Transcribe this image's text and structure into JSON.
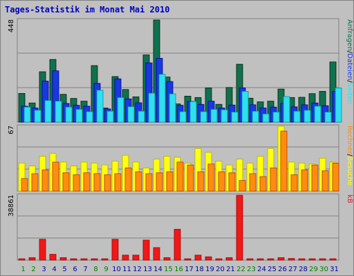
{
  "title": "Tages-Statistik im Monat Mai 2010",
  "colors": {
    "anfragen": "#107050",
    "dateien": "#1838e0",
    "seiten": "#30e0f0",
    "besuche": "#ffff10",
    "rechner": "#ff8c10",
    "kb": "#f01818",
    "weekend_label": "#008000",
    "weekday_label": "#0000a0"
  },
  "chart_data": [
    {
      "type": "bar",
      "panel": "top",
      "ymax_label": "448",
      "ymax": 448,
      "right_labels": [
        "Anfragen",
        "/",
        "Dateien",
        "/",
        "Seiten"
      ],
      "categories": [
        "1",
        "2",
        "3",
        "4",
        "5",
        "6",
        "7",
        "8",
        "9",
        "10",
        "11",
        "12",
        "13",
        "14",
        "15",
        "16",
        "17",
        "18",
        "19",
        "20",
        "21",
        "22",
        "23",
        "24",
        "25",
        "26",
        "27",
        "28",
        "29",
        "30",
        "31"
      ],
      "series": [
        {
          "name": "Anfragen",
          "values": [
            126,
            84,
            221,
            275,
            122,
            104,
            92,
            248,
            62,
            200,
            143,
            111,
            295,
            448,
            198,
            80,
            114,
            108,
            150,
            78,
            152,
            254,
            105,
            89,
            92,
            145,
            108,
            109,
            125,
            135,
            264
          ]
        },
        {
          "name": "Dateien",
          "values": [
            70,
            62,
            180,
            225,
            82,
            74,
            70,
            170,
            58,
            190,
            102,
            85,
            260,
            280,
            178,
            74,
            91,
            78,
            92,
            62,
            75,
            150,
            76,
            62,
            66,
            82,
            67,
            76,
            84,
            72,
            135
          ]
        },
        {
          "name": "Seiten",
          "values": [
            66,
            52,
            95,
            92,
            66,
            56,
            46,
            140,
            48,
            108,
            68,
            48,
            127,
            210,
            124,
            46,
            90,
            46,
            56,
            54,
            44,
            135,
            48,
            36,
            44,
            112,
            48,
            52,
            70,
            44,
            150
          ]
        }
      ]
    },
    {
      "type": "bar",
      "panel": "middle",
      "ymax_label": "67",
      "ymax": 67,
      "right_labels": [
        "Rechner",
        "/",
        "Besuche"
      ],
      "categories": [
        "1",
        "2",
        "3",
        "4",
        "5",
        "6",
        "7",
        "8",
        "9",
        "10",
        "11",
        "12",
        "13",
        "14",
        "15",
        "16",
        "17",
        "18",
        "19",
        "20",
        "21",
        "22",
        "23",
        "24",
        "25",
        "26",
        "27",
        "28",
        "29",
        "30",
        "31"
      ],
      "series": [
        {
          "name": "Besuche",
          "values": [
            29,
            26,
            36,
            39,
            30,
            26,
            30,
            29,
            27,
            31,
            37,
            30,
            24,
            33,
            36,
            35,
            29,
            44,
            40,
            31,
            27,
            33,
            29,
            36,
            44,
            67,
            30,
            29,
            28,
            34,
            30
          ]
        },
        {
          "name": "Rechner",
          "values": [
            13,
            18,
            22,
            30,
            19,
            17,
            19,
            18,
            17,
            18,
            24,
            20,
            18,
            19,
            20,
            30,
            27,
            20,
            28,
            20,
            19,
            11,
            18,
            15,
            24,
            62,
            17,
            22,
            27,
            21,
            29
          ]
        }
      ]
    },
    {
      "type": "bar",
      "panel": "bottom",
      "ymax_label": "38861",
      "ymax": 38861,
      "right_labels": [
        "kB"
      ],
      "categories": [
        "1",
        "2",
        "3",
        "4",
        "5",
        "6",
        "7",
        "8",
        "9",
        "10",
        "11",
        "12",
        "13",
        "14",
        "15",
        "16",
        "17",
        "18",
        "19",
        "20",
        "21",
        "22",
        "23",
        "24",
        "25",
        "26",
        "27",
        "28",
        "29",
        "30",
        "31"
      ],
      "series": [
        {
          "name": "kB",
          "values": [
            500,
            1500,
            12500,
            3500,
            1500,
            500,
            500,
            800,
            500,
            12500,
            3000,
            3000,
            12000,
            7500,
            1500,
            18500,
            800,
            3000,
            2000,
            800,
            1500,
            38861,
            800,
            800,
            800,
            1500,
            1000,
            800,
            800,
            800,
            800
          ]
        }
      ]
    }
  ],
  "weekend_days": [
    1,
    2,
    8,
    9,
    15,
    16,
    22,
    23,
    29,
    30
  ]
}
